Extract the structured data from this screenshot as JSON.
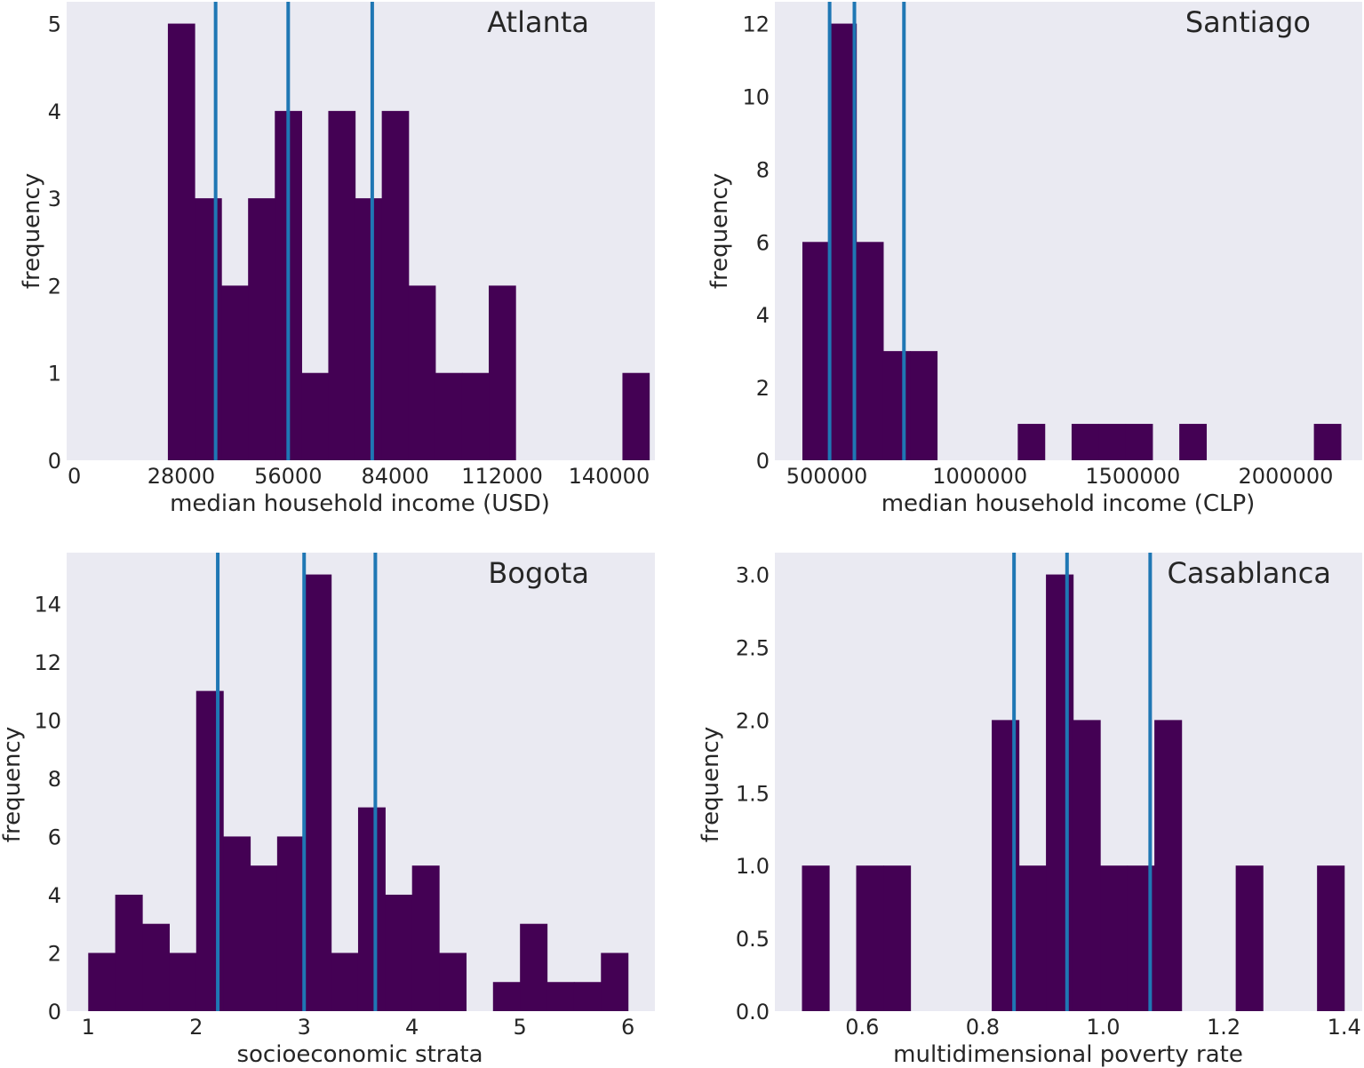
{
  "colors": {
    "panel_bg": "#eaeaf2",
    "bar": "#440154",
    "vline": "#1f77b4",
    "text": "#262626"
  },
  "chart_data": [
    {
      "type": "bar",
      "title": "Atlanta",
      "xlabel": "median household income (USD)",
      "ylabel": "frequency",
      "xlim": [
        -2000,
        152000
      ],
      "ylim": [
        0,
        5.25
      ],
      "xticks": [
        0,
        28000,
        56000,
        84000,
        112000,
        140000
      ],
      "xtick_labels": [
        "0",
        "28000",
        "56000",
        "84000",
        "112000",
        "140000"
      ],
      "yticks": [
        0,
        1,
        2,
        3,
        4,
        5
      ],
      "ytick_labels": [
        "0",
        "1",
        "2",
        "3",
        "4",
        "5"
      ],
      "bin_edges": [
        24500,
        31500,
        38500,
        45500,
        52500,
        59500,
        66500,
        73500,
        80500,
        87500,
        94500,
        101500,
        108500,
        115500,
        122500,
        129500,
        136500,
        143500,
        150500
      ],
      "values": [
        5,
        3,
        2,
        3,
        4,
        1,
        4,
        3,
        4,
        2,
        1,
        1,
        2,
        0,
        0,
        0,
        0,
        1
      ],
      "vlines": [
        37000,
        56000,
        78000
      ]
    },
    {
      "type": "bar",
      "title": "Santiago",
      "xlabel": "median household income (CLP)",
      "ylabel": "frequency",
      "xlim": [
        330000,
        2250000
      ],
      "ylim": [
        0,
        12.6
      ],
      "xticks": [
        500000,
        1000000,
        1500000,
        2000000
      ],
      "xtick_labels": [
        "500000",
        "1000000",
        "1500000",
        "2000000"
      ],
      "yticks": [
        0,
        2,
        4,
        6,
        8,
        10,
        12
      ],
      "ytick_labels": [
        "0",
        "2",
        "4",
        "6",
        "8",
        "10",
        "12"
      ],
      "bin_edges": [
        420000,
        508000,
        596000,
        684000,
        772000,
        860000,
        948000,
        1036000,
        1124000,
        1212000,
        1300000,
        1388000,
        1476000,
        1564000,
        1652000,
        1740000,
        1828000,
        1916000,
        2004000,
        2092000,
        2180000
      ],
      "values": [
        6,
        12,
        6,
        3,
        3,
        0,
        0,
        0,
        1,
        0,
        1,
        1,
        1,
        0,
        1,
        0,
        0,
        0,
        0,
        1
      ],
      "vlines": [
        509000,
        590000,
        752000
      ]
    },
    {
      "type": "bar",
      "title": "Bogota",
      "xlabel": "socioeconomic strata",
      "ylabel": "frequency",
      "xlim": [
        0.8,
        6.25
      ],
      "ylim": [
        0,
        15.75
      ],
      "xticks": [
        1,
        2,
        3,
        4,
        5,
        6
      ],
      "xtick_labels": [
        "1",
        "2",
        "3",
        "4",
        "5",
        "6"
      ],
      "yticks": [
        0,
        2,
        4,
        6,
        8,
        10,
        12,
        14
      ],
      "ytick_labels": [
        "0",
        "2",
        "4",
        "6",
        "8",
        "10",
        "12",
        "14"
      ],
      "bin_edges": [
        1.0,
        1.25,
        1.5,
        1.75,
        2.0,
        2.25,
        2.5,
        2.75,
        3.0,
        3.25,
        3.5,
        3.75,
        4.0,
        4.25,
        4.5,
        4.75,
        5.0,
        5.25,
        5.5,
        5.75,
        6.0
      ],
      "values": [
        2,
        4,
        3,
        2,
        11,
        6,
        5,
        6,
        15,
        2,
        7,
        4,
        5,
        2,
        0,
        1,
        3,
        1,
        1,
        2
      ],
      "vlines": [
        2.2,
        3.0,
        3.66
      ]
    },
    {
      "type": "bar",
      "title": "Casablanca",
      "xlabel": "multidimensional poverty rate",
      "ylabel": "frequency",
      "xlim": [
        0.455,
        1.43
      ],
      "ylim": [
        0,
        3.15
      ],
      "xticks": [
        0.6,
        0.8,
        1.0,
        1.2,
        1.4
      ],
      "xtick_labels": [
        "0.6",
        "0.8",
        "1.0",
        "1.2",
        "1.4"
      ],
      "yticks": [
        0,
        0.5,
        1.0,
        1.5,
        2.0,
        2.5,
        3.0
      ],
      "ytick_labels": [
        "0.0",
        "0.5",
        "1.0",
        "1.5",
        "2.0",
        "2.5",
        "3.0"
      ],
      "bin_edges": [
        0.5,
        0.545,
        0.59,
        0.635,
        0.68,
        0.725,
        0.77,
        0.815,
        0.86,
        0.905,
        0.95,
        0.995,
        1.04,
        1.085,
        1.13,
        1.175,
        1.22,
        1.265,
        1.31,
        1.355,
        1.4
      ],
      "values": [
        1,
        0,
        1,
        1,
        0,
        0,
        0,
        2,
        1,
        3,
        2,
        1,
        1,
        2,
        0,
        0,
        1,
        0,
        0,
        1
      ],
      "vlines": [
        0.852,
        0.94,
        1.078
      ]
    }
  ]
}
